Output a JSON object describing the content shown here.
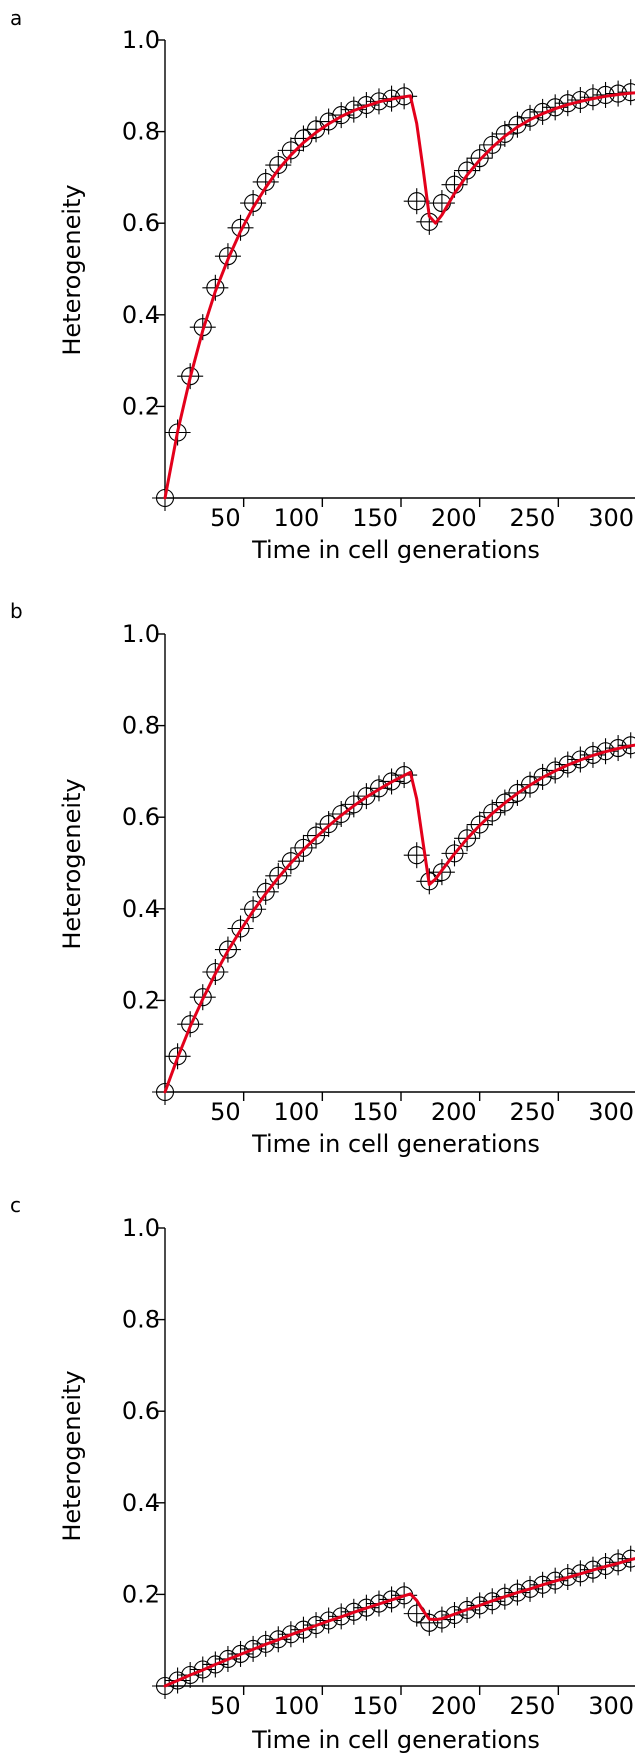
{
  "colors": {
    "fit_line": "#e3001b",
    "markers": "#000000",
    "axes": "#000000",
    "background": "#ffffff"
  },
  "chart_data": [
    {
      "panel_label": "a",
      "type": "line",
      "xlabel": "Time in cell generations",
      "ylabel": "Heterogeneity",
      "xlim": [
        0,
        300
      ],
      "ylim": [
        0,
        1.0
      ],
      "x_ticks": [
        50,
        100,
        150,
        200,
        250,
        300
      ],
      "y_ticks": [
        0.2,
        0.4,
        0.6,
        0.8,
        1.0
      ],
      "y_tick_labels": [
        "0.2",
        "0.4",
        "0.6",
        "0.8",
        "1.0"
      ],
      "grid": false,
      "series": [
        {
          "kind": "markers",
          "style": "circle-with-crosshair",
          "x": [
            0,
            8,
            16,
            24,
            32,
            40,
            48,
            56,
            64,
            72,
            80,
            88,
            96,
            104,
            112,
            120,
            128,
            136,
            144,
            152,
            160,
            168,
            176,
            184,
            192,
            200,
            208,
            216,
            224,
            232,
            240,
            248,
            256,
            264,
            272,
            280,
            288,
            296
          ],
          "y": [
            0,
            0.143,
            0.266,
            0.373,
            0.459,
            0.528,
            0.59,
            0.644,
            0.69,
            0.727,
            0.759,
            0.785,
            0.805,
            0.822,
            0.836,
            0.848,
            0.858,
            0.866,
            0.872,
            0.877,
            0.648,
            0.603,
            0.644,
            0.684,
            0.715,
            0.742,
            0.771,
            0.795,
            0.815,
            0.83,
            0.843,
            0.853,
            0.862,
            0.869,
            0.875,
            0.88,
            0.883,
            0.886
          ]
        },
        {
          "kind": "line",
          "style": "fit",
          "x": [
            0,
            8,
            16,
            24,
            32,
            40,
            48,
            56,
            64,
            72,
            80,
            88,
            96,
            104,
            112,
            120,
            128,
            136,
            144,
            152,
            156,
            160,
            164,
            168,
            172,
            176,
            184,
            192,
            200,
            208,
            216,
            224,
            232,
            240,
            248,
            256,
            264,
            272,
            280,
            288,
            296,
            300
          ],
          "y": [
            0,
            0.145,
            0.263,
            0.366,
            0.451,
            0.521,
            0.582,
            0.634,
            0.678,
            0.717,
            0.749,
            0.776,
            0.798,
            0.817,
            0.833,
            0.846,
            0.856,
            0.865,
            0.871,
            0.876,
            0.878,
            0.818,
            0.72,
            0.615,
            0.6,
            0.618,
            0.665,
            0.705,
            0.738,
            0.766,
            0.79,
            0.81,
            0.826,
            0.839,
            0.85,
            0.859,
            0.866,
            0.872,
            0.877,
            0.881,
            0.884,
            0.885
          ]
        }
      ]
    },
    {
      "panel_label": "b",
      "type": "line",
      "xlabel": "Time in cell generations",
      "ylabel": "Heterogeneity",
      "xlim": [
        0,
        300
      ],
      "ylim": [
        0,
        1.0
      ],
      "x_ticks": [
        50,
        100,
        150,
        200,
        250,
        300
      ],
      "y_ticks": [
        0.2,
        0.4,
        0.6,
        0.8,
        1.0
      ],
      "y_tick_labels": [
        "0.2",
        "0.4",
        "0.6",
        "0.8",
        "1.0"
      ],
      "grid": false,
      "series": [
        {
          "kind": "markers",
          "style": "circle-with-crosshair",
          "x": [
            0,
            8,
            16,
            24,
            32,
            40,
            48,
            56,
            64,
            72,
            80,
            88,
            96,
            104,
            112,
            120,
            128,
            136,
            144,
            152,
            160,
            168,
            176,
            184,
            192,
            200,
            208,
            216,
            224,
            232,
            240,
            248,
            256,
            264,
            272,
            280,
            288,
            296
          ],
          "y": [
            0,
            0.078,
            0.148,
            0.207,
            0.262,
            0.311,
            0.357,
            0.399,
            0.437,
            0.472,
            0.504,
            0.533,
            0.56,
            0.585,
            0.607,
            0.628,
            0.646,
            0.663,
            0.678,
            0.692,
            0.517,
            0.46,
            0.48,
            0.521,
            0.554,
            0.584,
            0.61,
            0.632,
            0.653,
            0.671,
            0.688,
            0.702,
            0.715,
            0.726,
            0.736,
            0.744,
            0.751,
            0.757
          ]
        },
        {
          "kind": "line",
          "style": "fit",
          "x": [
            0,
            8,
            16,
            24,
            32,
            40,
            48,
            56,
            64,
            72,
            80,
            88,
            96,
            104,
            112,
            120,
            128,
            136,
            144,
            152,
            156,
            160,
            164,
            168,
            172,
            176,
            184,
            192,
            200,
            208,
            216,
            224,
            232,
            240,
            248,
            256,
            264,
            272,
            280,
            288,
            296,
            300
          ],
          "y": [
            0,
            0.075,
            0.143,
            0.203,
            0.258,
            0.308,
            0.353,
            0.395,
            0.433,
            0.468,
            0.5,
            0.529,
            0.556,
            0.581,
            0.604,
            0.625,
            0.644,
            0.661,
            0.677,
            0.691,
            0.698,
            0.64,
            0.545,
            0.453,
            0.465,
            0.484,
            0.52,
            0.553,
            0.582,
            0.608,
            0.631,
            0.652,
            0.67,
            0.687,
            0.701,
            0.714,
            0.725,
            0.735,
            0.743,
            0.75,
            0.756,
            0.758
          ]
        }
      ]
    },
    {
      "panel_label": "c",
      "type": "line",
      "xlabel": "Time in cell generations",
      "ylabel": "Heterogeneity",
      "xlim": [
        0,
        300
      ],
      "ylim": [
        0,
        1.0
      ],
      "x_ticks": [
        50,
        100,
        150,
        200,
        250,
        300
      ],
      "y_ticks": [
        0.2,
        0.4,
        0.6,
        0.8,
        1.0
      ],
      "y_tick_labels": [
        "0.2",
        "0.4",
        "0.6",
        "0.8",
        "1.0"
      ],
      "grid": false,
      "series": [
        {
          "kind": "markers",
          "style": "circle-with-crosshair",
          "x": [
            0,
            8,
            16,
            24,
            32,
            40,
            48,
            56,
            64,
            72,
            80,
            88,
            96,
            104,
            112,
            120,
            128,
            136,
            144,
            152,
            160,
            168,
            176,
            184,
            192,
            200,
            208,
            216,
            224,
            232,
            240,
            248,
            256,
            264,
            272,
            280,
            288,
            296
          ],
          "y": [
            0,
            0.012,
            0.024,
            0.036,
            0.047,
            0.059,
            0.07,
            0.081,
            0.092,
            0.102,
            0.113,
            0.123,
            0.133,
            0.143,
            0.152,
            0.162,
            0.171,
            0.18,
            0.189,
            0.198,
            0.158,
            0.138,
            0.145,
            0.155,
            0.166,
            0.176,
            0.185,
            0.195,
            0.204,
            0.212,
            0.221,
            0.23,
            0.238,
            0.246,
            0.254,
            0.262,
            0.27,
            0.278
          ]
        },
        {
          "kind": "line",
          "style": "fit",
          "x": [
            0,
            8,
            16,
            24,
            32,
            40,
            48,
            56,
            64,
            72,
            80,
            88,
            96,
            104,
            112,
            120,
            128,
            136,
            144,
            152,
            156,
            160,
            164,
            168,
            172,
            176,
            184,
            192,
            200,
            208,
            216,
            224,
            232,
            240,
            248,
            256,
            264,
            272,
            280,
            288,
            296,
            300
          ],
          "y": [
            0,
            0.012,
            0.024,
            0.035,
            0.047,
            0.058,
            0.069,
            0.08,
            0.091,
            0.101,
            0.112,
            0.122,
            0.132,
            0.142,
            0.151,
            0.161,
            0.17,
            0.179,
            0.188,
            0.197,
            0.201,
            0.187,
            0.165,
            0.146,
            0.145,
            0.147,
            0.157,
            0.167,
            0.176,
            0.186,
            0.195,
            0.204,
            0.212,
            0.221,
            0.229,
            0.237,
            0.245,
            0.253,
            0.261,
            0.268,
            0.276,
            0.279
          ]
        }
      ]
    }
  ]
}
